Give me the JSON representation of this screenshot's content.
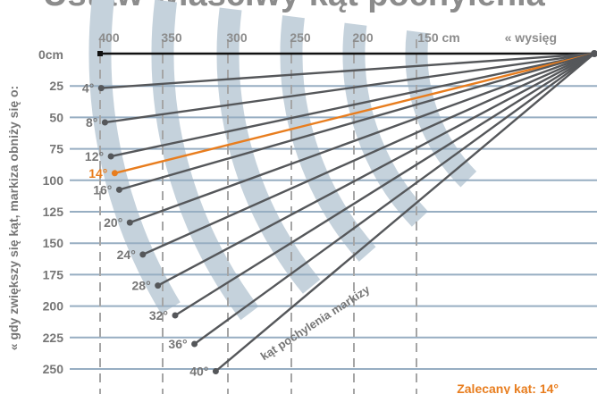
{
  "title": "Ustaw właściwy kąt pochylenia",
  "colors": {
    "band": "#c5d2dc",
    "grid": "#97aec2",
    "guide": "#a5a5a5",
    "ray": "#55575a",
    "highlight": "#e87d1e",
    "label": "#767676",
    "header": "#8c8c8c"
  },
  "extension_label": "« wysięg",
  "extension_columns": [
    "400",
    "350",
    "300",
    "250",
    "200",
    "150 cm"
  ],
  "vertical_axis_label": "« gdy zwiększy się kąt, markiza obniży się o:",
  "drop_ticks": [
    "0cm",
    "25",
    "50",
    "75",
    "100",
    "125",
    "150",
    "175",
    "200",
    "225",
    "250"
  ],
  "angles": [
    {
      "label": "4°",
      "value": 4
    },
    {
      "label": "8°",
      "value": 8
    },
    {
      "label": "12°",
      "value": 12
    },
    {
      "label": "14°",
      "value": 14,
      "highlight": true
    },
    {
      "label": "16°",
      "value": 16
    },
    {
      "label": "20°",
      "value": 20
    },
    {
      "label": "24°",
      "value": 24
    },
    {
      "label": "28°",
      "value": 28
    },
    {
      "label": "32°",
      "value": 32
    },
    {
      "label": "36°",
      "value": 36
    },
    {
      "label": "40°",
      "value": 40
    }
  ],
  "arm_label": "kąt pochylenia markizy",
  "recommended": "Zalecany kąt: 14°"
}
